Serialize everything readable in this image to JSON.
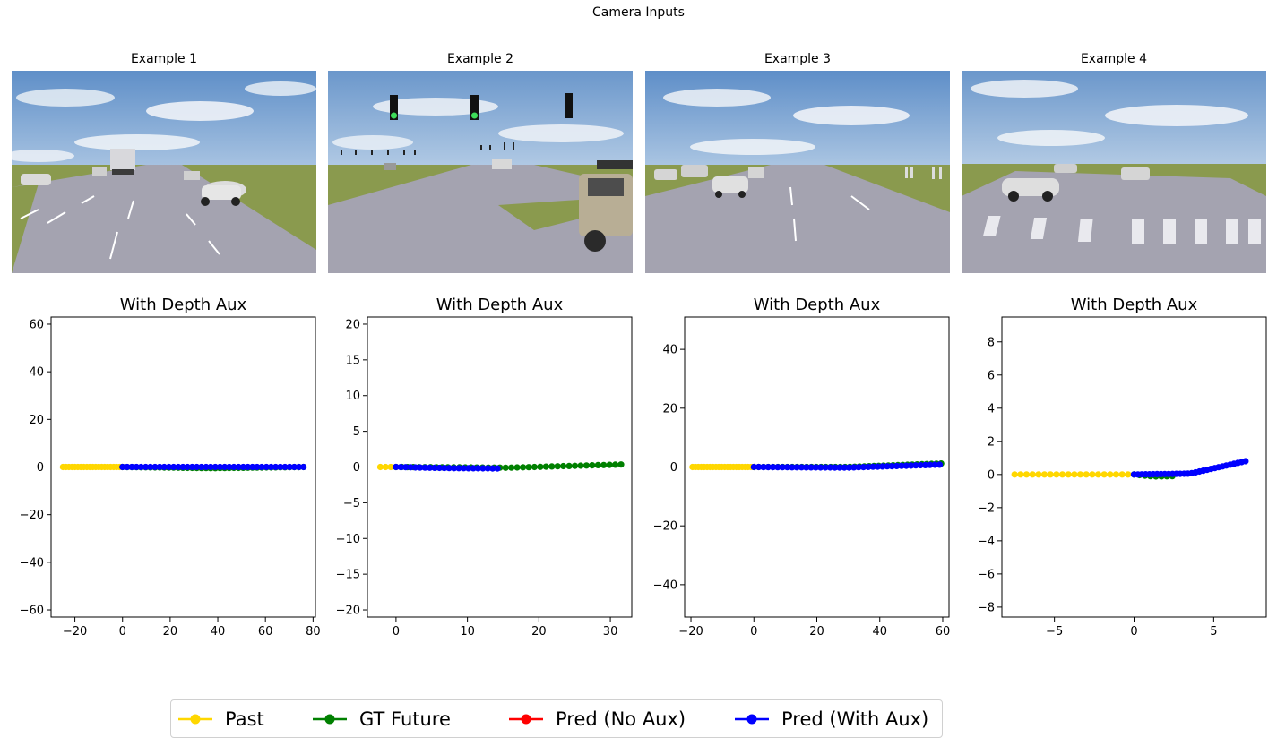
{
  "figure": {
    "title": "Camera Inputs"
  },
  "camera_panels": [
    {
      "title": "Example 1"
    },
    {
      "title": "Example 2"
    },
    {
      "title": "Example 3"
    },
    {
      "title": "Example 4"
    }
  ],
  "legend": [
    {
      "label": "Past",
      "color": "#FFD700"
    },
    {
      "label": "GT Future",
      "color": "#008000"
    },
    {
      "label": "Pred (No Aux)",
      "color": "#FF0000"
    },
    {
      "label": "Pred (With Aux)",
      "color": "#0000FF"
    }
  ],
  "chart_data": [
    {
      "type": "line",
      "title": "With Depth Aux",
      "xlim": [
        -30,
        81
      ],
      "ylim": [
        -63,
        63
      ],
      "xticks": [
        -20,
        0,
        20,
        40,
        60,
        80
      ],
      "yticks": [
        -60,
        -40,
        -20,
        0,
        20,
        40,
        60
      ],
      "grid": false,
      "series": [
        {
          "name": "Past",
          "color": "#FFD700",
          "x_range": [
            -25,
            0
          ],
          "points": 21,
          "y": [
            0,
            0
          ]
        },
        {
          "name": "GT Future",
          "color": "#008000",
          "x_range": [
            0,
            76
          ],
          "points": 40,
          "y": [
            0,
            -0.5,
            0
          ]
        },
        {
          "name": "Pred (With Aux)",
          "color": "#0000FF",
          "x_range": [
            0,
            76
          ],
          "points": 40,
          "y": [
            0,
            0,
            0
          ]
        }
      ]
    },
    {
      "type": "line",
      "title": "With Depth Aux",
      "xlim": [
        -4,
        33
      ],
      "ylim": [
        -21,
        21
      ],
      "xticks": [
        0,
        10,
        20,
        30
      ],
      "yticks": [
        -20,
        -15,
        -10,
        -5,
        0,
        5,
        10,
        15,
        20
      ],
      "grid": false,
      "series": [
        {
          "name": "Past",
          "color": "#FFD700",
          "x_range": [
            -2.2,
            0
          ],
          "points": 4,
          "y": [
            0,
            0
          ]
        },
        {
          "name": "GT Future",
          "color": "#008000",
          "x_range": [
            0,
            31.5
          ],
          "points": 40,
          "y": [
            0,
            -0.1,
            0.35
          ]
        },
        {
          "name": "Pred (With Aux)",
          "color": "#0000FF",
          "x_range": [
            0,
            14.2
          ],
          "points": 22,
          "y": [
            0,
            -0.15,
            -0.2
          ]
        }
      ]
    },
    {
      "type": "line",
      "title": "With Depth Aux",
      "xlim": [
        -22,
        62
      ],
      "ylim": [
        -51,
        51
      ],
      "xticks": [
        -20,
        0,
        20,
        40,
        60
      ],
      "yticks": [
        -40,
        -20,
        0,
        20,
        40
      ],
      "grid": false,
      "series": [
        {
          "name": "Past",
          "color": "#FFD700",
          "x_range": [
            -19.5,
            0
          ],
          "points": 22,
          "y": [
            0,
            0
          ]
        },
        {
          "name": "GT Future",
          "color": "#008000",
          "x_range": [
            0,
            59.5
          ],
          "points": 40,
          "y": [
            0,
            0,
            1.2
          ]
        },
        {
          "name": "Pred (With Aux)",
          "color": "#0000FF",
          "x_range": [
            0,
            59
          ],
          "points": 40,
          "y": [
            0,
            -0.2,
            0.8
          ]
        }
      ]
    },
    {
      "type": "line",
      "title": "With Depth Aux",
      "xlim": [
        -8.3,
        8.3
      ],
      "ylim": [
        -8.6,
        9.5
      ],
      "xticks": [
        -5,
        0,
        5
      ],
      "yticks": [
        -8,
        -6,
        -4,
        -2,
        0,
        2,
        4,
        6,
        8
      ],
      "grid": false,
      "series": [
        {
          "name": "Past",
          "color": "#FFD700",
          "x_range": [
            -7.5,
            0
          ],
          "points": 21,
          "y": [
            0,
            0
          ]
        },
        {
          "name": "GT Future",
          "color": "#008000",
          "x_range": [
            0,
            2.4
          ],
          "points": 8,
          "y": [
            0,
            -0.12,
            -0.1
          ]
        },
        {
          "name": "Pred (With Aux)",
          "color": "#0000FF",
          "x_range": [
            0,
            7
          ],
          "points": 30,
          "y": [
            0,
            0.05,
            0.8
          ]
        }
      ]
    }
  ]
}
